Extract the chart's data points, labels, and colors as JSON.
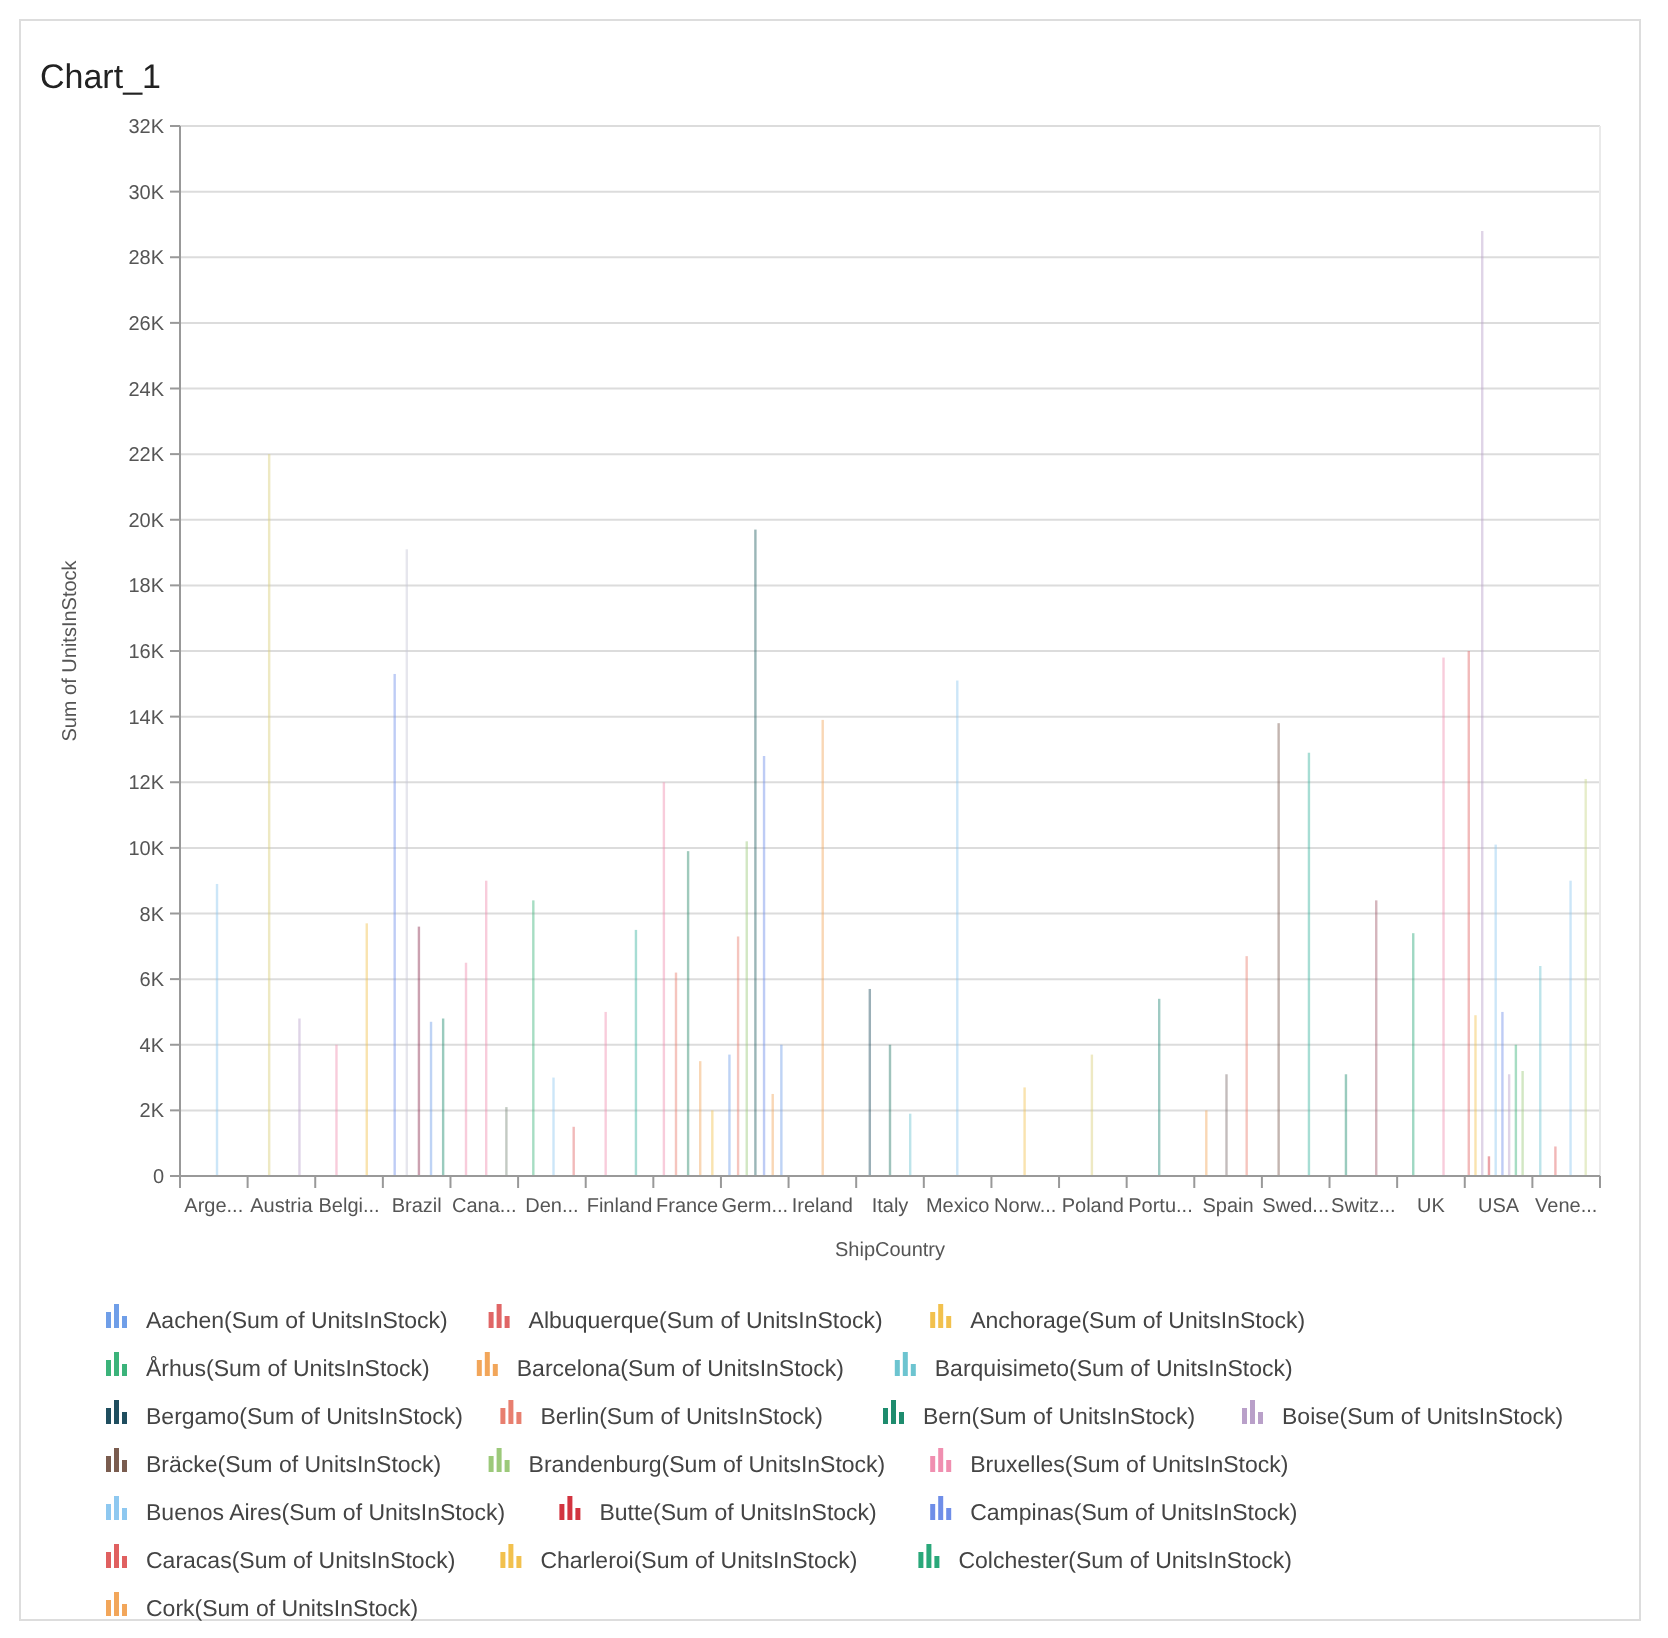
{
  "chart_data": {
    "type": "bar",
    "title": "Chart_1",
    "xlabel": "ShipCountry",
    "ylabel": "Sum of UnitsInStock",
    "categories": [
      "Arge...",
      "Austria",
      "Belgi...",
      "Brazil",
      "Cana...",
      "Den...",
      "Finland",
      "France",
      "Germ...",
      "Ireland",
      "Italy",
      "Mexico",
      "Norw...",
      "Poland",
      "Portu...",
      "Spain",
      "Swed...",
      "Switz...",
      "UK",
      "USA",
      "Vene..."
    ],
    "ylim": [
      0,
      32000
    ],
    "yticks": [
      0,
      {
        "value": 2000,
        "label": "2K"
      },
      {
        "value": 4000,
        "label": "4K"
      },
      {
        "value": 6000,
        "label": "6K"
      },
      {
        "value": 8000,
        "label": "8K"
      },
      {
        "value": 10000,
        "label": "10K"
      },
      {
        "value": 12000,
        "label": "12K"
      },
      {
        "value": 14000,
        "label": "14K"
      },
      {
        "value": 16000,
        "label": "16K"
      },
      {
        "value": 18000,
        "label": "18K"
      },
      {
        "value": 20000,
        "label": "20K"
      },
      {
        "value": 22000,
        "label": "22K"
      },
      {
        "value": 24000,
        "label": "24K"
      },
      {
        "value": 26000,
        "label": "26K"
      },
      {
        "value": 28000,
        "label": "28K"
      },
      {
        "value": 30000,
        "label": "30K"
      },
      {
        "value": 32000,
        "label": "32K"
      }
    ],
    "grid": "y",
    "legend": "bottom",
    "series": [
      {
        "name": "Aachen(Sum of UnitsInStock)",
        "color": "#6f9ee8",
        "values": [
          null,
          null,
          null,
          null,
          null,
          null,
          null,
          null,
          3700,
          null,
          null,
          null,
          null,
          null,
          null,
          null,
          null,
          null,
          null,
          null,
          null
        ]
      },
      {
        "name": "Albuquerque(Sum of UnitsInStock)",
        "color": "#e06666",
        "values": [
          null,
          null,
          null,
          null,
          null,
          null,
          null,
          null,
          null,
          null,
          null,
          null,
          null,
          null,
          null,
          null,
          null,
          null,
          null,
          16000,
          null
        ]
      },
      {
        "name": "Anchorage(Sum of UnitsInStock)",
        "color": "#f2c14e",
        "values": [
          null,
          null,
          null,
          null,
          null,
          null,
          null,
          null,
          null,
          null,
          null,
          null,
          null,
          null,
          null,
          null,
          null,
          null,
          null,
          4900,
          null
        ]
      },
      {
        "name": "Århus(Sum of UnitsInStock)",
        "color": "#3bb37a",
        "values": [
          null,
          null,
          null,
          null,
          null,
          8400,
          null,
          null,
          null,
          null,
          null,
          null,
          null,
          null,
          null,
          null,
          null,
          null,
          null,
          null,
          null
        ]
      },
      {
        "name": "Barcelona(Sum of UnitsInStock)",
        "color": "#f2a65a",
        "values": [
          null,
          null,
          null,
          null,
          null,
          null,
          null,
          null,
          null,
          null,
          null,
          null,
          null,
          null,
          null,
          2000,
          null,
          null,
          null,
          null,
          null
        ]
      },
      {
        "name": "Barquisimeto(Sum of UnitsInStock)",
        "color": "#6cc4d0",
        "values": [
          null,
          null,
          null,
          null,
          null,
          null,
          null,
          null,
          null,
          null,
          null,
          null,
          null,
          null,
          null,
          null,
          null,
          null,
          null,
          null,
          6400
        ]
      },
      {
        "name": "Bergamo(Sum of UnitsInStock)",
        "color": "#1f4e5f",
        "values": [
          null,
          null,
          null,
          null,
          null,
          null,
          null,
          null,
          null,
          null,
          5700,
          null,
          null,
          null,
          null,
          null,
          null,
          null,
          null,
          null,
          null
        ]
      },
      {
        "name": "Berlin(Sum of UnitsInStock)",
        "color": "#e87f6f",
        "values": [
          null,
          null,
          null,
          null,
          null,
          null,
          null,
          null,
          7300,
          null,
          null,
          null,
          null,
          null,
          null,
          null,
          null,
          null,
          null,
          null,
          null
        ]
      },
      {
        "name": "Bern(Sum of UnitsInStock)",
        "color": "#1e8c6e",
        "values": [
          null,
          null,
          null,
          null,
          null,
          null,
          null,
          null,
          null,
          null,
          null,
          null,
          null,
          null,
          null,
          null,
          null,
          3100,
          null,
          null,
          null
        ]
      },
      {
        "name": "Boise(Sum of UnitsInStock)",
        "color": "#b9a0c9",
        "values": [
          null,
          null,
          null,
          null,
          null,
          null,
          null,
          null,
          null,
          null,
          null,
          null,
          null,
          null,
          null,
          null,
          null,
          null,
          null,
          28800,
          null
        ]
      },
      {
        "name": "Bräcke(Sum of UnitsInStock)",
        "color": "#7a5c4f",
        "values": [
          null,
          null,
          null,
          null,
          null,
          null,
          null,
          null,
          null,
          null,
          null,
          null,
          null,
          null,
          null,
          null,
          13800,
          null,
          null,
          null,
          null
        ]
      },
      {
        "name": "Brandenburg(Sum of UnitsInStock)",
        "color": "#9cc97a",
        "values": [
          null,
          null,
          null,
          null,
          null,
          null,
          null,
          null,
          10200,
          null,
          null,
          null,
          null,
          null,
          null,
          null,
          null,
          null,
          null,
          null,
          null
        ]
      },
      {
        "name": "Bruxelles(Sum of UnitsInStock)",
        "color": "#f08fb0",
        "values": [
          null,
          null,
          4000,
          null,
          null,
          null,
          null,
          null,
          null,
          null,
          null,
          null,
          null,
          null,
          null,
          null,
          null,
          null,
          null,
          null,
          null
        ]
      },
      {
        "name": "Buenos Aires(Sum of UnitsInStock)",
        "color": "#8ec8f0",
        "values": [
          8900,
          null,
          null,
          null,
          null,
          null,
          null,
          null,
          null,
          null,
          null,
          null,
          null,
          null,
          null,
          null,
          null,
          null,
          null,
          null,
          null
        ]
      },
      {
        "name": "Butte(Sum of UnitsInStock)",
        "color": "#d2343f",
        "values": [
          null,
          null,
          null,
          null,
          null,
          null,
          null,
          null,
          null,
          null,
          null,
          null,
          null,
          null,
          null,
          null,
          null,
          null,
          null,
          600,
          null
        ]
      },
      {
        "name": "Campinas(Sum of UnitsInStock)",
        "color": "#6f8ee8",
        "values": [
          null,
          null,
          null,
          15300,
          null,
          null,
          null,
          null,
          null,
          null,
          null,
          null,
          null,
          null,
          null,
          null,
          null,
          null,
          null,
          null,
          null
        ]
      },
      {
        "name": "Caracas(Sum of UnitsInStock)",
        "color": "#e06060",
        "values": [
          null,
          null,
          null,
          null,
          null,
          null,
          null,
          null,
          null,
          null,
          null,
          null,
          null,
          null,
          null,
          null,
          null,
          null,
          null,
          null,
          900
        ]
      },
      {
        "name": "Charleroi(Sum of UnitsInStock)",
        "color": "#f2c14e",
        "values": [
          null,
          null,
          7700,
          null,
          null,
          null,
          null,
          null,
          null,
          null,
          null,
          null,
          null,
          null,
          null,
          null,
          null,
          null,
          null,
          null,
          null
        ]
      },
      {
        "name": "Colchester(Sum of UnitsInStock)",
        "color": "#2aa87a",
        "values": [
          null,
          null,
          null,
          null,
          null,
          null,
          null,
          null,
          null,
          null,
          null,
          null,
          null,
          null,
          null,
          null,
          null,
          null,
          7400,
          null,
          null
        ]
      },
      {
        "name": "Cork(Sum of UnitsInStock)",
        "color": "#f2a65a",
        "values": [
          null,
          null,
          null,
          null,
          null,
          null,
          null,
          null,
          null,
          13900,
          null,
          null,
          null,
          null,
          null,
          null,
          null,
          null,
          null,
          null,
          null
        ]
      },
      {
        "color": "#d9cf7a",
        "values": [
          null,
          22000,
          null,
          null,
          null,
          null,
          null,
          null,
          null,
          null,
          null,
          null,
          null,
          null,
          null,
          null,
          null,
          null,
          null,
          null,
          null
        ]
      },
      {
        "color": "#b9a0c9",
        "values": [
          null,
          4800,
          null,
          null,
          null,
          null,
          null,
          null,
          null,
          null,
          null,
          null,
          null,
          null,
          null,
          null,
          null,
          null,
          null,
          null,
          null
        ]
      },
      {
        "color": "#c8c8d8",
        "values": [
          null,
          null,
          null,
          19100,
          null,
          null,
          null,
          null,
          null,
          null,
          null,
          null,
          null,
          null,
          null,
          null,
          null,
          null,
          null,
          null,
          null
        ]
      },
      {
        "color": "#8b2f4f",
        "values": [
          null,
          null,
          null,
          7600,
          null,
          null,
          null,
          null,
          null,
          null,
          null,
          null,
          null,
          null,
          null,
          null,
          null,
          null,
          null,
          null,
          null
        ]
      },
      {
        "color": "#6f9ee8",
        "values": [
          null,
          null,
          null,
          4700,
          null,
          null,
          null,
          null,
          null,
          null,
          null,
          null,
          null,
          null,
          null,
          null,
          null,
          null,
          null,
          null,
          null
        ]
      },
      {
        "color": "#1e8c6e",
        "values": [
          null,
          null,
          null,
          4800,
          null,
          null,
          null,
          null,
          null,
          null,
          null,
          null,
          null,
          null,
          null,
          null,
          null,
          null,
          null,
          null,
          null
        ]
      },
      {
        "color": "#f08fb0",
        "values": [
          null,
          null,
          null,
          null,
          6500,
          null,
          null,
          null,
          null,
          null,
          null,
          null,
          null,
          null,
          null,
          null,
          null,
          null,
          null,
          null,
          null
        ]
      },
      {
        "color": "#f08fb0",
        "values": [
          null,
          null,
          null,
          null,
          9000,
          null,
          null,
          null,
          null,
          null,
          null,
          null,
          null,
          null,
          null,
          null,
          null,
          null,
          null,
          null,
          null
        ]
      },
      {
        "color": "#7a8a7a",
        "values": [
          null,
          null,
          null,
          null,
          2100,
          null,
          null,
          null,
          null,
          null,
          null,
          null,
          null,
          null,
          null,
          null,
          null,
          null,
          null,
          null,
          null
        ]
      },
      {
        "color": "#8ec8f0",
        "values": [
          null,
          null,
          null,
          null,
          null,
          3000,
          null,
          null,
          null,
          null,
          null,
          null,
          null,
          null,
          null,
          null,
          null,
          null,
          null,
          null,
          null
        ]
      },
      {
        "color": "#e06666",
        "values": [
          null,
          null,
          null,
          null,
          null,
          1500,
          null,
          null,
          null,
          null,
          null,
          null,
          null,
          null,
          null,
          null,
          null,
          null,
          null,
          null,
          null
        ]
      },
      {
        "color": "#f08fb0",
        "values": [
          null,
          null,
          null,
          null,
          null,
          null,
          5000,
          null,
          null,
          null,
          null,
          null,
          null,
          null,
          null,
          null,
          null,
          null,
          null,
          null,
          null
        ]
      },
      {
        "color": "#3bb3a0",
        "values": [
          null,
          null,
          null,
          null,
          null,
          null,
          7500,
          null,
          null,
          null,
          null,
          null,
          null,
          null,
          null,
          null,
          null,
          null,
          null,
          null,
          null
        ]
      },
      {
        "color": "#f08fb0",
        "values": [
          null,
          null,
          null,
          null,
          null,
          null,
          null,
          12000,
          null,
          null,
          null,
          null,
          null,
          null,
          null,
          null,
          null,
          null,
          null,
          null,
          null
        ]
      },
      {
        "color": "#e87f6f",
        "values": [
          null,
          null,
          null,
          null,
          null,
          null,
          null,
          6200,
          null,
          null,
          null,
          null,
          null,
          null,
          null,
          null,
          null,
          null,
          null,
          null,
          null
        ]
      },
      {
        "color": "#2a8a6a",
        "values": [
          null,
          null,
          null,
          null,
          null,
          null,
          null,
          9900,
          null,
          null,
          null,
          null,
          null,
          null,
          null,
          null,
          null,
          null,
          null,
          null,
          null
        ]
      },
      {
        "color": "#f2a65a",
        "values": [
          null,
          null,
          null,
          null,
          null,
          null,
          null,
          3500,
          null,
          null,
          null,
          null,
          null,
          null,
          null,
          null,
          null,
          null,
          null,
          null,
          null
        ]
      },
      {
        "color": "#f2c14e",
        "values": [
          null,
          null,
          null,
          null,
          null,
          null,
          null,
          2000,
          null,
          null,
          null,
          null,
          null,
          null,
          null,
          null,
          null,
          null,
          null,
          null,
          null
        ]
      },
      {
        "color": "#1f5e5f",
        "values": [
          null,
          null,
          null,
          null,
          null,
          null,
          null,
          null,
          19700,
          null,
          null,
          null,
          null,
          null,
          null,
          null,
          null,
          null,
          null,
          null,
          null
        ]
      },
      {
        "color": "#6f8ee8",
        "values": [
          null,
          null,
          null,
          null,
          null,
          null,
          null,
          null,
          12800,
          null,
          null,
          null,
          null,
          null,
          null,
          null,
          null,
          null,
          null,
          null,
          null
        ]
      },
      {
        "color": "#f2a65a",
        "values": [
          null,
          null,
          null,
          null,
          null,
          null,
          null,
          null,
          2500,
          null,
          null,
          null,
          null,
          null,
          null,
          null,
          null,
          null,
          null,
          null,
          null
        ]
      },
      {
        "color": "#6f9ee8",
        "values": [
          null,
          null,
          null,
          null,
          null,
          null,
          null,
          null,
          4000,
          null,
          null,
          null,
          null,
          null,
          null,
          null,
          null,
          null,
          null,
          null,
          null
        ]
      },
      {
        "color": "#2a7a6a",
        "values": [
          null,
          null,
          null,
          null,
          null,
          null,
          null,
          null,
          null,
          null,
          4000,
          null,
          null,
          null,
          null,
          null,
          null,
          null,
          null,
          null,
          null
        ]
      },
      {
        "color": "#6cc4d0",
        "values": [
          null,
          null,
          null,
          null,
          null,
          null,
          null,
          null,
          null,
          null,
          1900,
          null,
          null,
          null,
          null,
          null,
          null,
          null,
          null,
          null,
          null
        ]
      },
      {
        "color": "#8ec8f0",
        "values": [
          null,
          null,
          null,
          null,
          null,
          null,
          null,
          null,
          null,
          null,
          null,
          15100,
          null,
          null,
          null,
          null,
          null,
          null,
          null,
          null,
          null
        ]
      },
      {
        "color": "#f2c14e",
        "values": [
          null,
          null,
          null,
          null,
          null,
          null,
          null,
          null,
          null,
          null,
          null,
          null,
          2700,
          null,
          null,
          null,
          null,
          null,
          null,
          null,
          null
        ]
      },
      {
        "color": "#d9cf7a",
        "values": [
          null,
          null,
          null,
          null,
          null,
          null,
          null,
          null,
          null,
          null,
          null,
          null,
          null,
          3700,
          null,
          null,
          null,
          null,
          null,
          null,
          null
        ]
      },
      {
        "color": "#2a8a7a",
        "values": [
          null,
          null,
          null,
          null,
          null,
          null,
          null,
          null,
          null,
          null,
          null,
          null,
          null,
          null,
          5400,
          null,
          null,
          null,
          null,
          null,
          null
        ]
      },
      {
        "color": "#7a6a6a",
        "values": [
          null,
          null,
          null,
          null,
          null,
          null,
          null,
          null,
          null,
          null,
          null,
          null,
          null,
          null,
          null,
          3100,
          null,
          null,
          null,
          null,
          null
        ]
      },
      {
        "color": "#e87f6f",
        "values": [
          null,
          null,
          null,
          null,
          null,
          null,
          null,
          null,
          null,
          null,
          null,
          null,
          null,
          null,
          null,
          6700,
          null,
          null,
          null,
          null,
          null
        ]
      },
      {
        "color": "#3bb3a0",
        "values": [
          null,
          null,
          null,
          null,
          null,
          null,
          null,
          null,
          null,
          null,
          null,
          null,
          null,
          null,
          null,
          null,
          12900,
          null,
          null,
          null,
          null
        ]
      },
      {
        "color": "#a05a6a",
        "values": [
          null,
          null,
          null,
          null,
          null,
          null,
          null,
          null,
          null,
          null,
          null,
          null,
          null,
          null,
          null,
          null,
          null,
          8400,
          null,
          null,
          null
        ]
      },
      {
        "color": "#f08fb0",
        "values": [
          null,
          null,
          null,
          null,
          null,
          null,
          null,
          null,
          null,
          null,
          null,
          null,
          null,
          null,
          null,
          null,
          null,
          null,
          15800,
          null,
          null
        ]
      },
      {
        "color": "#8ec8f0",
        "values": [
          null,
          null,
          null,
          null,
          null,
          null,
          null,
          null,
          null,
          null,
          null,
          null,
          null,
          null,
          null,
          null,
          null,
          null,
          null,
          10100,
          null
        ]
      },
      {
        "color": "#6f8ee8",
        "values": [
          null,
          null,
          null,
          null,
          null,
          null,
          null,
          null,
          null,
          null,
          null,
          null,
          null,
          null,
          null,
          null,
          null,
          null,
          null,
          5000,
          null
        ]
      },
      {
        "color": "#b9a0c9",
        "values": [
          null,
          null,
          null,
          null,
          null,
          null,
          null,
          null,
          null,
          null,
          null,
          null,
          null,
          null,
          null,
          null,
          null,
          null,
          null,
          3100,
          null
        ]
      },
      {
        "color": "#3bb37a",
        "values": [
          null,
          null,
          null,
          null,
          null,
          null,
          null,
          null,
          null,
          null,
          null,
          null,
          null,
          null,
          null,
          null,
          null,
          null,
          null,
          4000,
          null
        ]
      },
      {
        "color": "#9cc97a",
        "values": [
          null,
          null,
          null,
          null,
          null,
          null,
          null,
          null,
          null,
          null,
          null,
          null,
          null,
          null,
          null,
          null,
          null,
          null,
          null,
          3200,
          null
        ]
      },
      {
        "color": "#8ec8f0",
        "values": [
          null,
          null,
          null,
          null,
          null,
          null,
          null,
          null,
          null,
          null,
          null,
          null,
          null,
          null,
          null,
          null,
          null,
          null,
          null,
          null,
          9000
        ]
      },
      {
        "color": "#c8d88a",
        "values": [
          null,
          null,
          null,
          null,
          null,
          null,
          null,
          null,
          null,
          null,
          null,
          null,
          null,
          null,
          null,
          null,
          null,
          null,
          null,
          null,
          12100
        ]
      }
    ]
  }
}
